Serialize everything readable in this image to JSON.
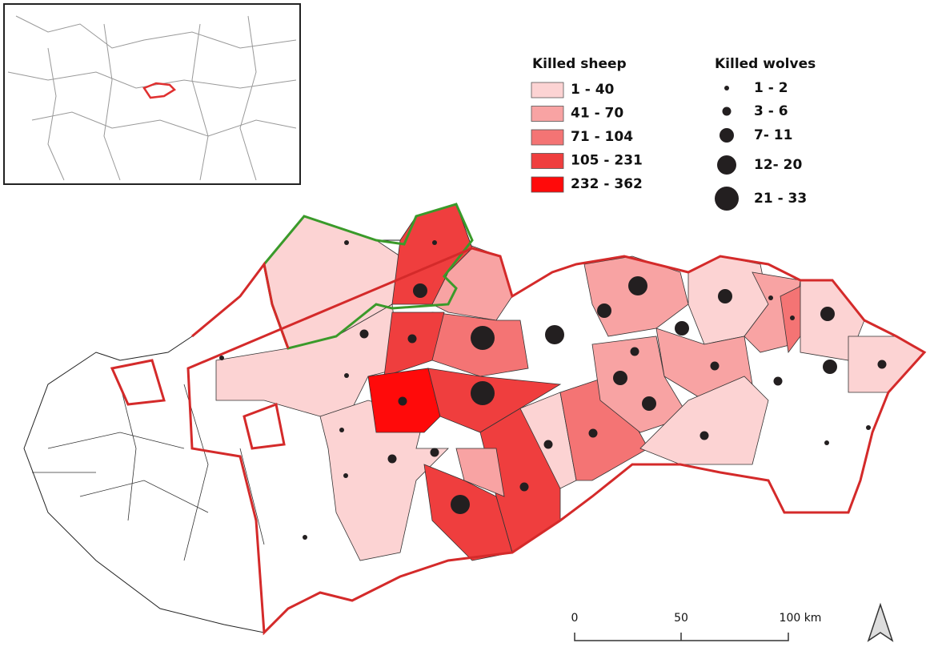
{
  "legend_sheep": {
    "title": "Killed sheep",
    "items": [
      "1 - 40",
      "41 - 70",
      "71 - 104",
      "105 - 231",
      "232 - 362"
    ]
  },
  "legend_wolves": {
    "title": "Killed wolves",
    "items": [
      "1 - 2",
      "3 - 6",
      "7- 11",
      "12- 20",
      "21 - 33"
    ]
  },
  "scale_bar": {
    "labels": [
      "0",
      "50",
      "100 km"
    ]
  }
}
